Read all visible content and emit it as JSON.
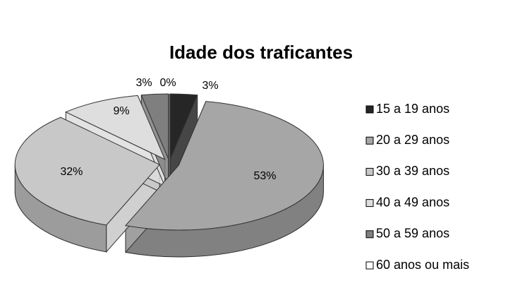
{
  "chart_data": {
    "type": "pie3d",
    "title": "Idade dos traficantes",
    "categories": [
      "15 a 19 anos",
      "20 a 29 anos",
      "30 a 39 anos",
      "40 a 49 anos",
      "50 a 59 anos",
      "60 anos ou mais"
    ],
    "values": [
      3,
      53,
      32,
      9,
      3,
      0
    ],
    "value_labels": [
      "3%",
      "53%",
      "32%",
      "9%",
      "3%",
      "0%"
    ],
    "colors": [
      "#262626",
      "#a6a6a6",
      "#c8c8c8",
      "#dedede",
      "#7f7f7f",
      "#ffffff"
    ],
    "legend": "right"
  }
}
